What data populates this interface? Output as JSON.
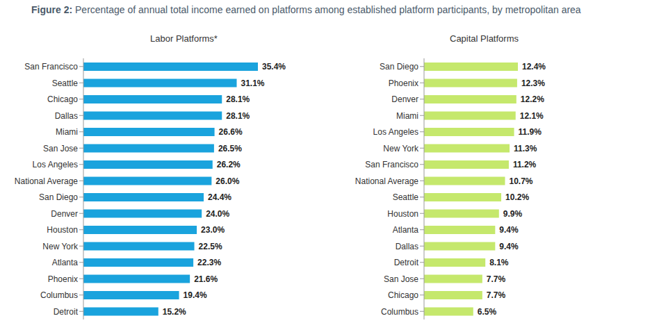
{
  "title": "Figure 2: Percentage of annual total income earned on platforms among established platform participants, by metropolitan area",
  "chart_data": [
    {
      "type": "bar",
      "title": "Labor Platforms*",
      "orientation": "horizontal",
      "data_labels": true,
      "tick_labels": "y",
      "color": "#1aa3dd",
      "categories": [
        "San Francisco",
        "Seattle",
        "Chicago",
        "Dallas",
        "Miami",
        "San Jose",
        "Los Angeles",
        "National Average",
        "San Diego",
        "Denver",
        "Houston",
        "New York",
        "Atlanta",
        "Phoenix",
        "Columbus",
        "Detroit"
      ],
      "values": [
        35.4,
        31.1,
        28.1,
        28.1,
        26.6,
        26.5,
        26.2,
        26.0,
        24.4,
        24.0,
        23.0,
        22.5,
        22.3,
        21.6,
        19.4,
        15.2
      ],
      "value_labels": [
        "35.4%",
        "31.1%",
        "28.1%",
        "28.1%",
        "26.6%",
        "26.5%",
        "26.2%",
        "26.0%",
        "24.4%",
        "24.0%",
        "23.0%",
        "22.5%",
        "22.3%",
        "21.6%",
        "19.4%",
        "15.2%"
      ]
    },
    {
      "type": "bar",
      "title": "Capital Platforms",
      "orientation": "horizontal",
      "data_labels": true,
      "tick_labels": "y",
      "color": "#c5e86c",
      "categories": [
        "San Diego",
        "Phoenix",
        "Denver",
        "Miami",
        "Los Angeles",
        "New York",
        "San Francisco",
        "National Average",
        "Seattle",
        "Houston",
        "Atlanta",
        "Dallas",
        "Detroit",
        "San Jose",
        "Chicago",
        "Columbus"
      ],
      "values": [
        12.4,
        12.3,
        12.2,
        12.1,
        11.9,
        11.3,
        11.2,
        10.7,
        10.2,
        9.9,
        9.4,
        9.4,
        8.1,
        7.7,
        7.7,
        6.5
      ],
      "value_labels": [
        "12.4%",
        "12.3%",
        "12.2%",
        "12.1%",
        "11.9%",
        "11.3%",
        "11.2%",
        "10.7%",
        "10.2%",
        "9.9%",
        "9.4%",
        "9.4%",
        "8.1%",
        "7.7%",
        "7.7%",
        "6.5%"
      ]
    }
  ]
}
